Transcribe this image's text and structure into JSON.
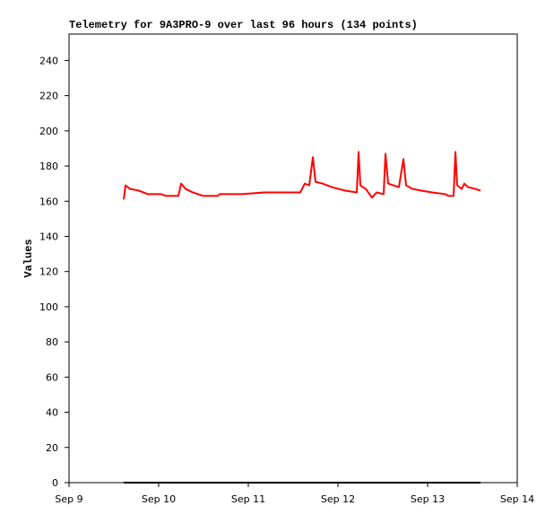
{
  "chart_data": {
    "type": "line",
    "title": "Telemetry for 9A3PRO-9 over last 96 hours (134 points)",
    "y_label": "Values",
    "x": [
      9.61,
      9.63,
      9.68,
      9.78,
      9.88,
      10.03,
      10.08,
      10.22,
      10.25,
      10.3,
      10.38,
      10.5,
      10.66,
      10.68,
      10.93,
      11.18,
      11.43,
      11.58,
      11.63,
      11.68,
      11.72,
      11.75,
      11.83,
      11.93,
      12.08,
      12.21,
      12.23,
      12.25,
      12.31,
      12.38,
      12.43,
      12.51,
      12.53,
      12.56,
      12.68,
      12.73,
      12.76,
      12.83,
      12.93,
      13.05,
      13.2,
      13.23,
      13.29,
      13.31,
      13.33,
      13.38,
      13.41,
      13.45,
      13.53,
      13.59
    ],
    "series": [
      {
        "color": "#ff0000",
        "values": [
          161,
          169,
          167,
          166,
          164,
          164,
          163,
          163,
          170,
          167,
          165,
          163,
          163,
          164,
          164,
          165,
          165,
          165,
          170,
          169,
          185,
          171,
          170,
          168,
          166,
          165,
          188,
          169,
          167,
          162,
          165,
          164,
          187,
          170,
          168,
          184,
          169,
          167,
          166,
          165,
          164,
          163,
          163,
          188,
          169,
          167,
          170,
          168,
          167,
          166
        ]
      },
      {
        "color": "#000000",
        "values": [
          0,
          0,
          0,
          0,
          0,
          0,
          0,
          0,
          0,
          0,
          0,
          0,
          0,
          0,
          0,
          0,
          0,
          0,
          0,
          0,
          0,
          0,
          0,
          0,
          0,
          0,
          0,
          0,
          0,
          0,
          0,
          0,
          0,
          0,
          0,
          0,
          0,
          0,
          0,
          0,
          0,
          0,
          0,
          0,
          0,
          0,
          0,
          0,
          0,
          0
        ]
      }
    ],
    "xlim": [
      9,
      14
    ],
    "xticks": [
      {
        "value": 9,
        "label": "Sep 9"
      },
      {
        "value": 10,
        "label": "Sep 10"
      },
      {
        "value": 11,
        "label": "Sep 11"
      },
      {
        "value": 12,
        "label": "Sep 12"
      },
      {
        "value": 13,
        "label": "Sep 13"
      },
      {
        "value": 14,
        "label": "Sep 14"
      }
    ],
    "ylim": [
      0,
      255
    ],
    "yticks": [
      0,
      20,
      40,
      60,
      80,
      100,
      120,
      140,
      160,
      180,
      200,
      220,
      240
    ]
  }
}
